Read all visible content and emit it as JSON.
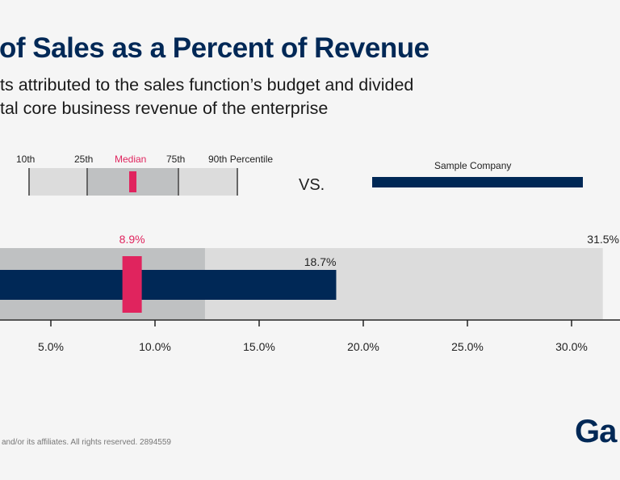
{
  "chart_data": {
    "type": "bar",
    "title": "of Sales as a Percent of Revenue",
    "subtitle": [
      "ts attributed to the sales function’s budget and divided",
      "tal core business revenue of the enterprise"
    ],
    "legend": {
      "labels": [
        "10th",
        "25th",
        "Median",
        "75th",
        "90th Percentile"
      ],
      "vs": "VS.",
      "sample_label": "Sample Company"
    },
    "percentile_75": 12.4,
    "percentile_90": 31.5,
    "percentile_90_label": "31.5%",
    "median": 8.9,
    "median_label": "8.9%",
    "sample_company": 18.7,
    "sample_company_label": "18.7%",
    "x_ticks": [
      5,
      10,
      15,
      20,
      25,
      30
    ],
    "x_tick_labels": [
      "5.0%",
      "10.0%",
      "15.0%",
      "20.0%",
      "25.0%",
      "30.0%"
    ],
    "colors": {
      "sample": "#002856",
      "median": "#e0245e",
      "inner_band": "#bfc1c2",
      "outer_band": "#dcdcdc",
      "title": "#002856"
    }
  },
  "footer": "and/or its affiliates. All rights reserved. 2894559",
  "logo": "Ga"
}
